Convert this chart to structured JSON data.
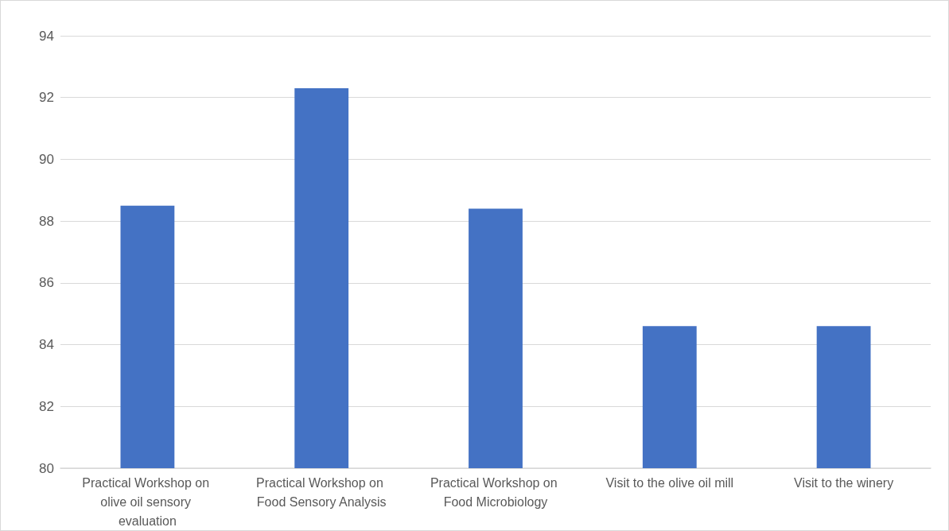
{
  "chart_data": {
    "type": "bar",
    "categories": [
      "Practical Workshop on olive oil sensory evaluation",
      "Practical Workshop on Food Sensory Analysis",
      "Practical Workshop on Food Microbiology",
      "Visit to the olive oil mill",
      "Visit to the winery"
    ],
    "values": [
      88.5,
      92.3,
      88.4,
      84.6,
      84.6
    ],
    "color": "#4472c4",
    "ylim": [
      80,
      94
    ],
    "yticks": [
      80,
      82,
      84,
      86,
      88,
      90,
      92,
      94
    ],
    "grid": "y"
  }
}
